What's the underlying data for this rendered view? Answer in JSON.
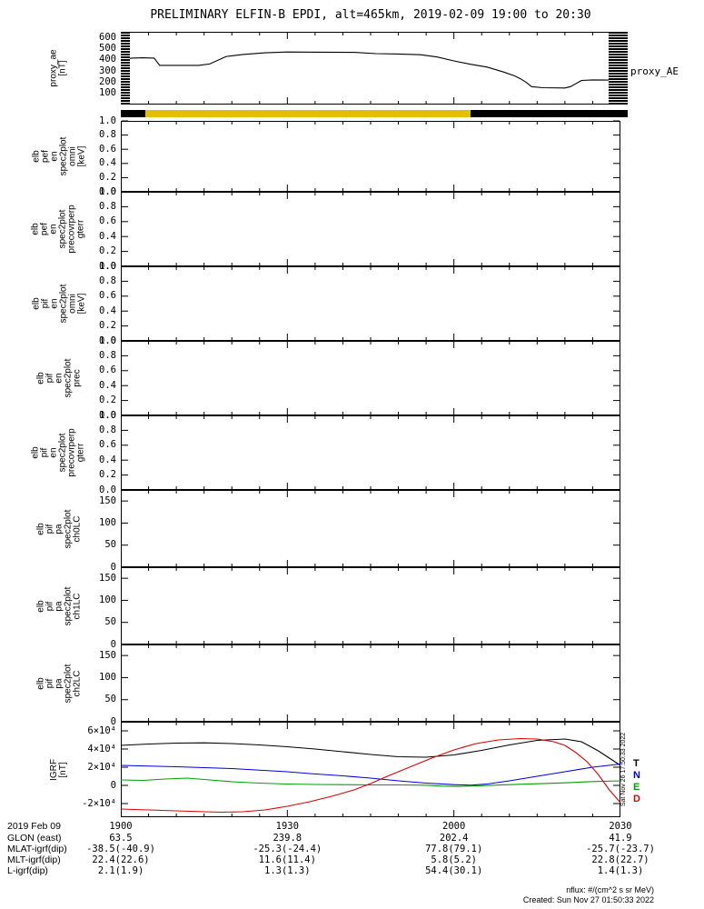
{
  "title": "PRELIMINARY ELFIN-B EPDI, alt=465km, 2019-02-09 19:00 to 20:30",
  "right_annotations": {
    "proxy_label": "proxy_AE",
    "legend": [
      {
        "label": "T",
        "color": "#000000"
      },
      {
        "label": "N",
        "color": "#0000dd"
      },
      {
        "label": "E",
        "color": "#00a000"
      },
      {
        "label": "D",
        "color": "#dd0000"
      }
    ],
    "side_timestamp": "Sat Nov 26 17:50:33 2022"
  },
  "footer": {
    "units_note": "nflux: #/(cm^2 s sr MeV)",
    "created_note": "Created: Sun Nov 27 01:50:33 2022"
  },
  "bottom_rows": [
    {
      "label": "2019 Feb 09",
      "values": [
        "1900",
        "1930",
        "2000",
        "2030"
      ]
    },
    {
      "label": "GLON (east)",
      "values": [
        "63.5",
        "239.8",
        "202.4",
        "41.9"
      ]
    },
    {
      "label": "MLAT-igrf(dip)",
      "values": [
        "-38.5(-40.9)",
        "-25.3(-24.4)",
        "77.8(79.1)",
        "-25.7(-23.7)"
      ]
    },
    {
      "label": "MLT-igrf(dip)",
      "values": [
        "22.4(22.6)",
        "11.6(11.4)",
        "5.8(5.2)",
        "22.8(22.7)"
      ]
    },
    {
      "label": "L-igrf(dip)",
      "values": [
        "2.1(1.9)",
        "1.3(1.3)",
        "54.4(30.1)",
        "1.4(1.3)"
      ]
    }
  ],
  "status_bar": {
    "segments": [
      {
        "color": "#000000",
        "from": 0.0,
        "to": 0.049
      },
      {
        "color": "#e0c000",
        "from": 0.049,
        "to": 0.7
      },
      {
        "color": "#000000",
        "from": 0.7,
        "to": 1.015
      }
    ]
  },
  "chart_data": [
    {
      "type": "line",
      "id": "proxy-ae",
      "ylabel_lines": [
        "proxy_ae",
        "[nT]"
      ],
      "xlim": [
        0,
        90
      ],
      "x_major_ticks": [
        0,
        30,
        60,
        90
      ],
      "ylim": [
        0,
        650
      ],
      "yticks": [
        {
          "v": 600,
          "label": "600"
        },
        {
          "v": 500,
          "label": "500"
        },
        {
          "v": 400,
          "label": "400"
        },
        {
          "v": 300,
          "label": "300"
        },
        {
          "v": 200,
          "label": "200"
        },
        {
          "v": 100,
          "label": "100"
        }
      ],
      "edge_bars": [
        {
          "from": 0.0,
          "to": 0.018
        },
        {
          "from": 0.977,
          "to": 1.015
        }
      ],
      "series": [
        {
          "name": "proxy_AE",
          "color": "#000000",
          "x": [
            0,
            2,
            4,
            6,
            7,
            14,
            16,
            19,
            22,
            26,
            30,
            36,
            42,
            46,
            50,
            54,
            57,
            60,
            63,
            66,
            69,
            71,
            72,
            73,
            74,
            76,
            80,
            81,
            83,
            85,
            90
          ],
          "y": [
            400,
            415,
            418,
            415,
            350,
            350,
            362,
            430,
            448,
            462,
            470,
            468,
            466,
            455,
            452,
            445,
            425,
            390,
            360,
            335,
            290,
            255,
            230,
            200,
            160,
            150,
            148,
            160,
            215,
            220,
            218
          ]
        }
      ]
    },
    {
      "type": "line",
      "id": "elb-pef-en-omni",
      "ylabel_lines": [
        "elb",
        "pef",
        "en",
        "spec2plot",
        "omni",
        "[keV]"
      ],
      "xlim": [
        0,
        90
      ],
      "x_major_ticks": [
        0,
        30,
        60,
        90
      ],
      "ylim": [
        0,
        1
      ],
      "yticks": [
        {
          "v": 1.0,
          "label": "1.0"
        },
        {
          "v": 0.8,
          "label": "0.8"
        },
        {
          "v": 0.6,
          "label": "0.6"
        },
        {
          "v": 0.4,
          "label": "0.4"
        },
        {
          "v": 0.2,
          "label": "0.2"
        },
        {
          "v": 0.0,
          "label": "0.0"
        }
      ],
      "series": []
    },
    {
      "type": "line",
      "id": "elb-pef-en-precovrperp-gterr",
      "ylabel_lines": [
        "elb",
        "pef",
        "en",
        "spec2plot",
        "precovrperp",
        "gterr"
      ],
      "xlim": [
        0,
        90
      ],
      "x_major_ticks": [
        0,
        30,
        60,
        90
      ],
      "ylim": [
        0,
        1
      ],
      "yticks": [
        {
          "v": 1.0,
          "label": "1.0"
        },
        {
          "v": 0.8,
          "label": "0.8"
        },
        {
          "v": 0.6,
          "label": "0.6"
        },
        {
          "v": 0.4,
          "label": "0.4"
        },
        {
          "v": 0.2,
          "label": "0.2"
        },
        {
          "v": 0.0,
          "label": "0.0"
        }
      ],
      "series": []
    },
    {
      "type": "line",
      "id": "elb-pif-en-omni",
      "ylabel_lines": [
        "elb",
        "pif",
        "en",
        "spec2plot",
        "omni",
        "[keV]"
      ],
      "xlim": [
        0,
        90
      ],
      "x_major_ticks": [
        0,
        30,
        60,
        90
      ],
      "ylim": [
        0,
        1
      ],
      "yticks": [
        {
          "v": 1.0,
          "label": "1.0"
        },
        {
          "v": 0.8,
          "label": "0.8"
        },
        {
          "v": 0.6,
          "label": "0.6"
        },
        {
          "v": 0.4,
          "label": "0.4"
        },
        {
          "v": 0.2,
          "label": "0.2"
        },
        {
          "v": 0.0,
          "label": "0.0"
        }
      ],
      "series": []
    },
    {
      "type": "line",
      "id": "elb-pif-en-prec",
      "ylabel_lines": [
        "elb",
        "pif",
        "en",
        "spec2plot",
        "prec"
      ],
      "xlim": [
        0,
        90
      ],
      "x_major_ticks": [
        0,
        30,
        60,
        90
      ],
      "ylim": [
        0,
        1
      ],
      "yticks": [
        {
          "v": 1.0,
          "label": "1.0"
        },
        {
          "v": 0.8,
          "label": "0.8"
        },
        {
          "v": 0.6,
          "label": "0.6"
        },
        {
          "v": 0.4,
          "label": "0.4"
        },
        {
          "v": 0.2,
          "label": "0.2"
        },
        {
          "v": 0.0,
          "label": "0.0"
        }
      ],
      "series": []
    },
    {
      "type": "line",
      "id": "elb-pif-en-precovrperp-gterr",
      "ylabel_lines": [
        "elb",
        "pif",
        "en",
        "spec2plot",
        "precovrperp",
        "gterr"
      ],
      "xlim": [
        0,
        90
      ],
      "x_major_ticks": [
        0,
        30,
        60,
        90
      ],
      "ylim": [
        0,
        1
      ],
      "yticks": [
        {
          "v": 1.0,
          "label": "1.0"
        },
        {
          "v": 0.8,
          "label": "0.8"
        },
        {
          "v": 0.6,
          "label": "0.6"
        },
        {
          "v": 0.4,
          "label": "0.4"
        },
        {
          "v": 0.2,
          "label": "0.2"
        },
        {
          "v": 0.0,
          "label": "0.0"
        }
      ],
      "series": []
    },
    {
      "type": "line",
      "id": "elb-pif-pa-ch0LC",
      "ylabel_lines": [
        "elb",
        "pif",
        "pa",
        "spec2plot",
        "ch0LC"
      ],
      "xlim": [
        0,
        90
      ],
      "x_major_ticks": [
        0,
        30,
        60,
        90
      ],
      "ylim": [
        0,
        175
      ],
      "yticks": [
        {
          "v": 150,
          "label": "150"
        },
        {
          "v": 100,
          "label": "100"
        },
        {
          "v": 50,
          "label": "50"
        },
        {
          "v": 0,
          "label": "0"
        }
      ],
      "series": []
    },
    {
      "type": "line",
      "id": "elb-pif-pa-ch1LC",
      "ylabel_lines": [
        "elb",
        "pif",
        "pa",
        "spec2plot",
        "ch1LC"
      ],
      "xlim": [
        0,
        90
      ],
      "x_major_ticks": [
        0,
        30,
        60,
        90
      ],
      "ylim": [
        0,
        175
      ],
      "yticks": [
        {
          "v": 150,
          "label": "150"
        },
        {
          "v": 100,
          "label": "100"
        },
        {
          "v": 50,
          "label": "50"
        },
        {
          "v": 0,
          "label": "0"
        }
      ],
      "series": []
    },
    {
      "type": "line",
      "id": "elb-pif-pa-ch2LC",
      "ylabel_lines": [
        "elb",
        "pif",
        "pa",
        "spec2plot",
        "ch2LC"
      ],
      "xlim": [
        0,
        90
      ],
      "x_major_ticks": [
        0,
        30,
        60,
        90
      ],
      "ylim": [
        0,
        175
      ],
      "yticks": [
        {
          "v": 150,
          "label": "150"
        },
        {
          "v": 100,
          "label": "100"
        },
        {
          "v": 50,
          "label": "50"
        },
        {
          "v": 0,
          "label": "0"
        }
      ],
      "series": []
    },
    {
      "type": "line",
      "id": "igrf",
      "ylabel_lines": [
        "IGRF",
        "[nT]"
      ],
      "xlim": [
        0,
        90
      ],
      "x_major_ticks": [
        0,
        30,
        60,
        90
      ],
      "ylim": [
        -35000,
        70000
      ],
      "yticks": [
        {
          "v": 60000,
          "label": "6×10⁴"
        },
        {
          "v": 40000,
          "label": "4×10⁴"
        },
        {
          "v": 20000,
          "label": "2×10⁴"
        },
        {
          "v": 0,
          "label": "0"
        },
        {
          "v": -20000,
          "label": "-2×10⁴"
        }
      ],
      "series": [
        {
          "name": "T",
          "color": "#000000",
          "x": [
            0,
            5,
            10,
            15,
            20,
            25,
            30,
            35,
            40,
            45,
            50,
            55,
            60,
            65,
            70,
            75,
            80,
            83,
            86,
            90
          ],
          "y": [
            44000,
            45500,
            46500,
            46800,
            46000,
            44500,
            42500,
            40000,
            37000,
            34000,
            31500,
            31000,
            33500,
            38500,
            44500,
            49500,
            51000,
            48000,
            38000,
            22000
          ]
        },
        {
          "name": "N",
          "color": "#0000dd",
          "x": [
            0,
            10,
            20,
            30,
            34,
            40,
            45,
            50,
            55,
            60,
            63,
            66,
            70,
            75,
            80,
            85,
            90
          ],
          "y": [
            22000,
            20500,
            18500,
            15000,
            13000,
            10500,
            8000,
            5000,
            2500,
            800,
            200,
            1500,
            5000,
            10000,
            15000,
            20000,
            23500
          ]
        },
        {
          "name": "E",
          "color": "#00a000",
          "x": [
            0,
            4,
            8,
            12,
            16,
            20,
            25,
            30,
            35,
            40,
            45,
            50,
            55,
            58,
            61,
            65,
            70,
            75,
            80,
            85,
            90
          ],
          "y": [
            6000,
            5500,
            7000,
            8000,
            6000,
            4000,
            2500,
            1500,
            1000,
            800,
            500,
            500,
            200,
            -800,
            -1200,
            -300,
            800,
            1800,
            2800,
            4200,
            5000
          ]
        },
        {
          "name": "D",
          "color": "#dd0000",
          "x": [
            0,
            5,
            10,
            15,
            18,
            22,
            26,
            30,
            34,
            38,
            42,
            45,
            48,
            52,
            56,
            60,
            64,
            68,
            72,
            75,
            78,
            80,
            82,
            84,
            86,
            88,
            90
          ],
          "y": [
            -26000,
            -27000,
            -28000,
            -29000,
            -29500,
            -29000,
            -27000,
            -23000,
            -18000,
            -12000,
            -5000,
            2000,
            10000,
            20000,
            30000,
            39000,
            46000,
            50000,
            51500,
            51000,
            48000,
            44000,
            36000,
            26000,
            12000,
            -5000,
            -19000
          ]
        }
      ]
    }
  ]
}
